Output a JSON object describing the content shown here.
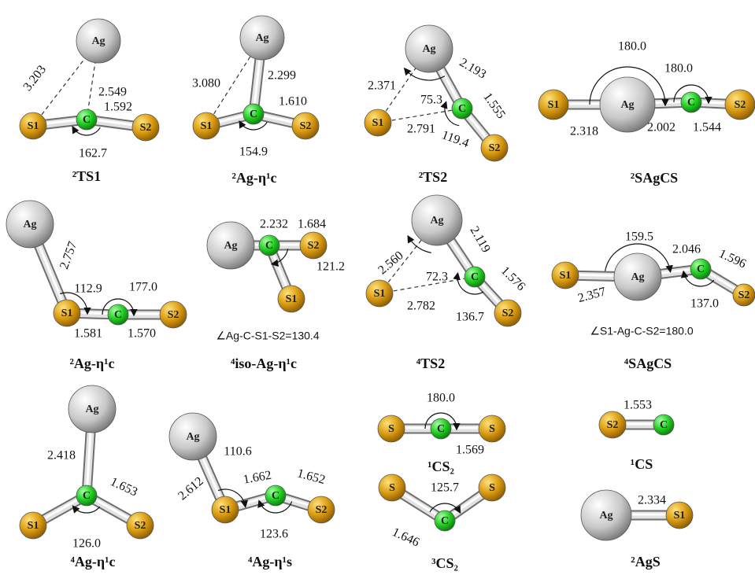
{
  "panels": [
    {
      "caption": "²TS1",
      "atoms": [
        "Ag",
        "S1",
        "C",
        "S2"
      ],
      "lengths": [
        "3.203",
        "2.549",
        "1.592"
      ],
      "angles": [
        "162.7"
      ]
    },
    {
      "caption": "²Ag-η¹c",
      "atoms": [
        "Ag",
        "S1",
        "C",
        "S2"
      ],
      "lengths": [
        "3.080",
        "2.299",
        "1.610"
      ],
      "angles": [
        "154.9"
      ]
    },
    {
      "caption": "²TS2",
      "atoms": [
        "Ag",
        "S1",
        "C",
        "S2"
      ],
      "lengths": [
        "2.371",
        "2.193",
        "1.555",
        "2.791"
      ],
      "angles": [
        "75.3",
        "119.4"
      ]
    },
    {
      "caption": "²SAgCS",
      "atoms": [
        "S1",
        "Ag",
        "C",
        "S2"
      ],
      "lengths": [
        "2.318",
        "2.002",
        "1.544"
      ],
      "angles": [
        "180.0",
        "180.0"
      ]
    },
    {
      "caption": "²Ag-η¹c",
      "atoms": [
        "Ag",
        "S1",
        "C",
        "S2"
      ],
      "lengths": [
        "2.757",
        "1.581",
        "1.570"
      ],
      "angles": [
        "112.9",
        "177.0"
      ]
    },
    {
      "caption": "⁴iso-Ag-η¹c",
      "atoms": [
        "Ag",
        "C",
        "S2",
        "S1"
      ],
      "lengths": [
        "2.232",
        "1.684"
      ],
      "angles": [
        "121.2"
      ],
      "note": "∠Ag-C-S1-S2=130.4"
    },
    {
      "caption": "⁴TS2",
      "atoms": [
        "Ag",
        "S1",
        "C",
        "S2"
      ],
      "lengths": [
        "2.560",
        "2.119",
        "1.576",
        "2.782"
      ],
      "angles": [
        "72.3",
        "136.7"
      ]
    },
    {
      "caption": "⁴SAgCS",
      "atoms": [
        "S1",
        "Ag",
        "C",
        "S2"
      ],
      "lengths": [
        "2.357",
        "2.046",
        "1.596"
      ],
      "angles": [
        "159.5",
        "137.0"
      ],
      "note": "∠S1-Ag-C-S2=180.0"
    },
    {
      "caption": "⁴Ag-η¹c",
      "atoms": [
        "Ag",
        "S1",
        "C",
        "S2"
      ],
      "lengths": [
        "2.418",
        "1.653"
      ],
      "angles": [
        "126.0"
      ]
    },
    {
      "caption": "⁴Ag-η¹s",
      "atoms": [
        "Ag",
        "S1",
        "C",
        "S2"
      ],
      "lengths": [
        "2.612",
        "1.662",
        "1.652"
      ],
      "angles": [
        "110.6",
        "123.6"
      ]
    },
    {
      "caption": "¹CS₂",
      "atoms": [
        "S",
        "C",
        "S"
      ],
      "lengths": [
        "1.569"
      ],
      "angles": [
        "180.0"
      ]
    },
    {
      "caption": "¹CS",
      "atoms": [
        "S2",
        "C"
      ],
      "lengths": [
        "1.553"
      ]
    },
    {
      "caption": "³CS₂",
      "atoms": [
        "S",
        "C",
        "S"
      ],
      "lengths": [
        "1.646"
      ],
      "angles": [
        "125.7"
      ]
    },
    {
      "caption": "²AgS",
      "atoms": [
        "Ag",
        "S1"
      ],
      "lengths": [
        "2.334"
      ]
    }
  ]
}
